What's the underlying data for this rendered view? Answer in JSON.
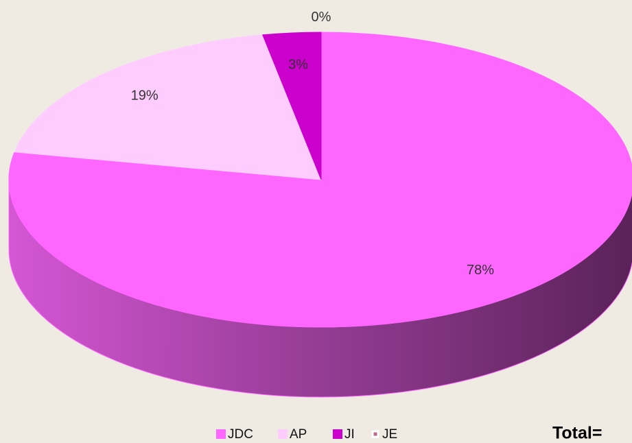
{
  "chart_data": {
    "type": "pie",
    "categories": [
      "JDC",
      "AP",
      "JI",
      "JE"
    ],
    "values": [
      78,
      19,
      3,
      0
    ],
    "value_labels": [
      "78%",
      "19%",
      "3%",
      "0%"
    ],
    "colors": [
      "#ff66ff",
      "#ffccff",
      "#cc00cc",
      "#b86a8a"
    ],
    "annotation": "Total=",
    "legend": "bottom"
  }
}
